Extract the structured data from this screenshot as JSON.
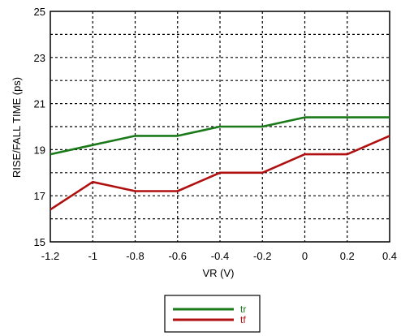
{
  "chart_data": {
    "type": "line",
    "xlabel": "VR (V)",
    "ylabel": "RISE/FALL TIME (ps)",
    "xlim": [
      -1.2,
      0.4
    ],
    "ylim": [
      15,
      25
    ],
    "x_ticks": [
      "-1.2",
      "-1",
      "-0.8",
      "-0.6",
      "-0.4",
      "-0.2",
      "0",
      "0.2",
      "0.4"
    ],
    "y_ticks": [
      "15",
      "17",
      "19",
      "21",
      "23",
      "25"
    ],
    "grid": "dashed",
    "legend_position": "bottom-center",
    "x": [
      -1.2,
      -1.0,
      -0.8,
      -0.6,
      -0.4,
      -0.2,
      0.0,
      0.2,
      0.4
    ],
    "series": [
      {
        "name": "tr",
        "color": "#1a7a1a",
        "values": [
          18.8,
          19.2,
          19.6,
          19.6,
          20.0,
          20.0,
          20.4,
          20.4,
          20.4
        ]
      },
      {
        "name": "tf",
        "color": "#b01010",
        "values": [
          16.4,
          17.6,
          17.2,
          17.2,
          18.0,
          18.0,
          18.8,
          18.8,
          19.6
        ]
      }
    ]
  }
}
